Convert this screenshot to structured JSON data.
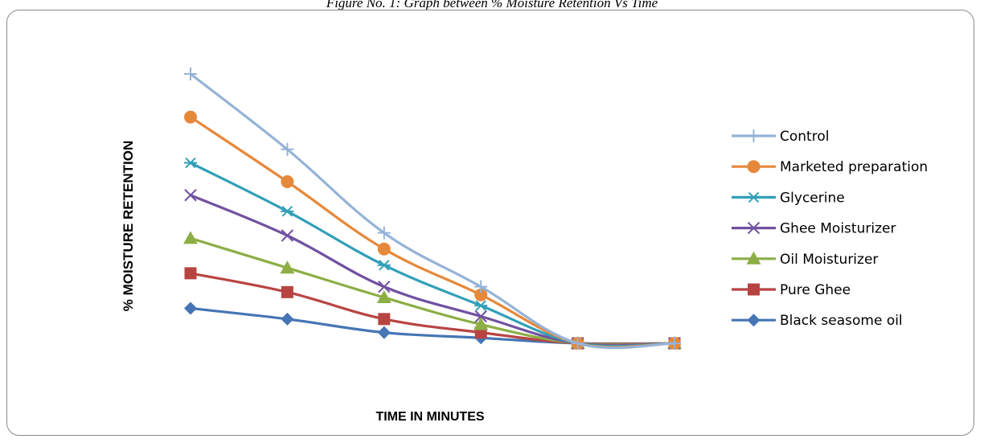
{
  "caption": "Figure No. 1: Graph between % Moisture Retention Vs Time",
  "chart_data": {
    "type": "line",
    "title": "",
    "xlabel": "TIME IN MINUTES",
    "ylabel": "% MOISTURE RETENTION",
    "x": [
      1,
      2,
      3,
      4,
      5,
      6
    ],
    "ylim": [
      0,
      100
    ],
    "grid": false,
    "legend_position": "right",
    "series": [
      {
        "name": "Control",
        "color": "#95B3D7",
        "marker": "plus",
        "values": [
          100,
          72,
          41,
          21,
          0,
          0
        ]
      },
      {
        "name": "Marketed preparation",
        "color": "#E6883A",
        "marker": "circle",
        "values": [
          84,
          60,
          35,
          18,
          0,
          0
        ]
      },
      {
        "name": "Glycerine",
        "color": "#31A0B8",
        "marker": "asterisk",
        "values": [
          67,
          49,
          29,
          14,
          0,
          0
        ]
      },
      {
        "name": "Ghee Moisturizer",
        "color": "#7151A0",
        "marker": "x",
        "values": [
          55,
          40,
          21,
          10,
          0,
          0
        ]
      },
      {
        "name": "Oil Moisturizer",
        "color": "#8CAE45",
        "marker": "triangle",
        "values": [
          39,
          28,
          17,
          7,
          0,
          0
        ]
      },
      {
        "name": "Pure Ghee",
        "color": "#B84442",
        "marker": "square",
        "values": [
          26,
          19,
          9,
          4,
          0,
          0
        ]
      },
      {
        "name": "Black seasome oil",
        "color": "#4675B5",
        "marker": "diamond",
        "values": [
          13,
          9,
          4,
          2,
          0,
          0
        ]
      }
    ]
  }
}
